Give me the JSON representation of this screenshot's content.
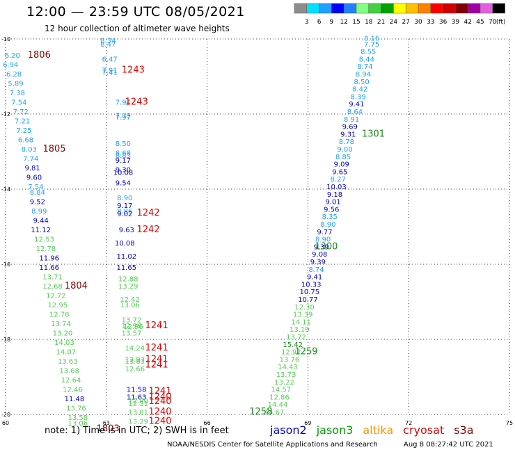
{
  "header": {
    "title": "12:00 — 23:59 UTC 08/05/2021",
    "subtitle": "12 hour collection of altimeter wave heights"
  },
  "color_scale": {
    "colors": [
      "#8c8c8c",
      "#00e1ff",
      "#1ea0ff",
      "#0000ff",
      "#2080ff",
      "#80ff80",
      "#40d040",
      "#00a000",
      "#ffff00",
      "#ffc000",
      "#ff8000",
      "#ff0000",
      "#d00000",
      "#800000",
      "#a000a0",
      "#e060e0",
      "#000000"
    ],
    "labels": [
      "3",
      "6",
      "9",
      "12",
      "15",
      "18",
      "21",
      "24",
      "27",
      "30",
      "33",
      "36",
      "39",
      "42",
      "45",
      "70",
      "(ft)"
    ]
  },
  "footer": {
    "note": "note:  1) Time is in UTC;  2) SWH is in feet",
    "credit": "NOAA/NESDIS Center for Satellite Applications and Research",
    "timestamp": "Aug  8 08:27:42 UTC 2021"
  },
  "satellites": [
    {
      "name": "jason2",
      "color": "#0000d0"
    },
    {
      "name": "jason3",
      "color": "#00a000"
    },
    {
      "name": "altika",
      "color": "#ff9000"
    },
    {
      "name": "cryosat",
      "color": "#e00000"
    },
    {
      "name": "s3a",
      "color": "#800000"
    }
  ],
  "chart_data": {
    "type": "scatter",
    "title": "12:00 — 23:59 UTC 08/05/2021",
    "xlim": [
      60,
      75
    ],
    "ylim": [
      -20,
      -10
    ],
    "xticks": [
      "60",
      "63",
      "66",
      "69",
      "72",
      "75"
    ],
    "yticks": [
      "-10",
      "-12",
      "-14",
      "-16",
      "-18",
      "-20"
    ],
    "grid": true,
    "palette": {
      "cyan": "#1ea0ff",
      "blue": "#0000c8",
      "lgreen": "#50d050",
      "dgreen": "#1a8a1a",
      "red": "#e00000",
      "maroon": "#800000"
    },
    "points": [
      {
        "x": 60.2,
        "y": -10.5,
        "v": "6.20",
        "c": "cyan"
      },
      {
        "x": 60.15,
        "y": -10.75,
        "v": "6.94",
        "c": "cyan"
      },
      {
        "x": 60.25,
        "y": -11.0,
        "v": "6.28",
        "c": "cyan"
      },
      {
        "x": 60.3,
        "y": -11.25,
        "v": "5.89",
        "c": "cyan"
      },
      {
        "x": 60.35,
        "y": -11.5,
        "v": "7.38",
        "c": "cyan"
      },
      {
        "x": 60.4,
        "y": -11.75,
        "v": "7.54",
        "c": "cyan"
      },
      {
        "x": 60.45,
        "y": -12.0,
        "v": "7.72",
        "c": "cyan"
      },
      {
        "x": 60.5,
        "y": -12.25,
        "v": "7.21",
        "c": "cyan"
      },
      {
        "x": 60.55,
        "y": -12.5,
        "v": "7.25",
        "c": "cyan"
      },
      {
        "x": 60.6,
        "y": -12.75,
        "v": "6.68",
        "c": "cyan"
      },
      {
        "x": 60.7,
        "y": -13.0,
        "v": "8.03",
        "c": "cyan"
      },
      {
        "x": 60.75,
        "y": -13.25,
        "v": "7.74",
        "c": "cyan"
      },
      {
        "x": 60.8,
        "y": -13.5,
        "v": "9.81",
        "c": "blue"
      },
      {
        "x": 60.85,
        "y": -13.75,
        "v": "9.60",
        "c": "blue"
      },
      {
        "x": 60.9,
        "y": -14.0,
        "v": "7.54",
        "c": "cyan"
      },
      {
        "x": 60.95,
        "y": -14.15,
        "v": "8.84",
        "c": "cyan"
      },
      {
        "x": 60.95,
        "y": -14.4,
        "v": "9.52",
        "c": "blue"
      },
      {
        "x": 61.0,
        "y": -14.65,
        "v": "8.99",
        "c": "cyan"
      },
      {
        "x": 61.05,
        "y": -14.9,
        "v": "9.44",
        "c": "blue"
      },
      {
        "x": 61.05,
        "y": -15.15,
        "v": "11.12",
        "c": "blue"
      },
      {
        "x": 61.15,
        "y": -15.4,
        "v": "12.53",
        "c": "lgreen"
      },
      {
        "x": 61.2,
        "y": -15.65,
        "v": "12.78",
        "c": "lgreen"
      },
      {
        "x": 61.3,
        "y": -15.9,
        "v": "11.96",
        "c": "blue"
      },
      {
        "x": 61.3,
        "y": -16.15,
        "v": "11.66",
        "c": "blue"
      },
      {
        "x": 61.4,
        "y": -16.4,
        "v": "13.71",
        "c": "lgreen"
      },
      {
        "x": 61.4,
        "y": -16.65,
        "v": "12.68",
        "c": "lgreen"
      },
      {
        "x": 61.5,
        "y": -16.9,
        "v": "12.72",
        "c": "lgreen"
      },
      {
        "x": 61.55,
        "y": -17.15,
        "v": "12.95",
        "c": "lgreen"
      },
      {
        "x": 61.6,
        "y": -17.4,
        "v": "12.78",
        "c": "lgreen"
      },
      {
        "x": 61.65,
        "y": -17.65,
        "v": "13.74",
        "c": "lgreen"
      },
      {
        "x": 61.7,
        "y": -17.9,
        "v": "13.20",
        "c": "lgreen"
      },
      {
        "x": 61.75,
        "y": -18.15,
        "v": "14.03",
        "c": "lgreen"
      },
      {
        "x": 61.8,
        "y": -18.4,
        "v": "14.07",
        "c": "lgreen"
      },
      {
        "x": 61.85,
        "y": -18.65,
        "v": "13.63",
        "c": "lgreen"
      },
      {
        "x": 61.9,
        "y": -18.9,
        "v": "13.68",
        "c": "lgreen"
      },
      {
        "x": 61.95,
        "y": -19.15,
        "v": "12.64",
        "c": "lgreen"
      },
      {
        "x": 62.0,
        "y": -19.4,
        "v": "12.46",
        "c": "lgreen"
      },
      {
        "x": 62.05,
        "y": -19.65,
        "v": "11.48",
        "c": "blue"
      },
      {
        "x": 62.1,
        "y": -19.9,
        "v": "13.76",
        "c": "lgreen"
      },
      {
        "x": 62.15,
        "y": -20.15,
        "v": "13.58",
        "c": "lgreen"
      },
      {
        "x": 62.15,
        "y": -20.3,
        "v": "13.06",
        "c": "lgreen"
      },
      {
        "x": 63.05,
        "y": -10.1,
        "v": "8.34",
        "c": "cyan"
      },
      {
        "x": 63.05,
        "y": -10.2,
        "v": "8.47",
        "c": "cyan"
      },
      {
        "x": 63.1,
        "y": -10.6,
        "v": "6.47",
        "c": "cyan"
      },
      {
        "x": 63.1,
        "y": -10.9,
        "v": "7.91",
        "c": "cyan"
      },
      {
        "x": 63.1,
        "y": -10.95,
        "v": "7.41",
        "c": "cyan"
      },
      {
        "x": 63.5,
        "y": -11.75,
        "v": "7.94",
        "c": "cyan"
      },
      {
        "x": 63.5,
        "y": -12.1,
        "v": "7.19",
        "c": "cyan"
      },
      {
        "x": 63.5,
        "y": -12.15,
        "v": "7.97",
        "c": "cyan"
      },
      {
        "x": 63.5,
        "y": -12.85,
        "v": "8.50",
        "c": "cyan"
      },
      {
        "x": 63.5,
        "y": -13.1,
        "v": "8.68",
        "c": "cyan"
      },
      {
        "x": 63.5,
        "y": -13.17,
        "v": "8.83",
        "c": "cyan"
      },
      {
        "x": 63.5,
        "y": -13.3,
        "v": "9.17",
        "c": "blue"
      },
      {
        "x": 63.5,
        "y": -13.55,
        "v": "9.30",
        "c": "blue"
      },
      {
        "x": 63.5,
        "y": -13.62,
        "v": "10.08",
        "c": "blue"
      },
      {
        "x": 63.5,
        "y": -13.9,
        "v": "9.54",
        "c": "blue"
      },
      {
        "x": 63.55,
        "y": -14.3,
        "v": "8.90",
        "c": "cyan"
      },
      {
        "x": 63.55,
        "y": -14.5,
        "v": "9.17",
        "c": "blue"
      },
      {
        "x": 63.55,
        "y": -14.65,
        "v": "8.86",
        "c": "cyan"
      },
      {
        "x": 63.55,
        "y": -14.72,
        "v": "9.02",
        "c": "blue"
      },
      {
        "x": 63.6,
        "y": -15.15,
        "v": "9.63",
        "c": "blue"
      },
      {
        "x": 63.55,
        "y": -15.5,
        "v": "10.08",
        "c": "blue"
      },
      {
        "x": 63.6,
        "y": -15.85,
        "v": "11.02",
        "c": "blue"
      },
      {
        "x": 63.6,
        "y": -16.15,
        "v": "11.65",
        "c": "blue"
      },
      {
        "x": 63.65,
        "y": -16.45,
        "v": "12.88",
        "c": "lgreen"
      },
      {
        "x": 63.65,
        "y": -16.65,
        "v": "13.29",
        "c": "lgreen"
      },
      {
        "x": 63.7,
        "y": -17.0,
        "v": "12.42",
        "c": "lgreen"
      },
      {
        "x": 63.7,
        "y": -17.15,
        "v": "13.06",
        "c": "lgreen"
      },
      {
        "x": 63.75,
        "y": -17.55,
        "v": "13.72",
        "c": "lgreen"
      },
      {
        "x": 63.75,
        "y": -17.7,
        "v": "12.98",
        "c": "lgreen"
      },
      {
        "x": 63.8,
        "y": -17.72,
        "v": "12.96",
        "c": "lgreen"
      },
      {
        "x": 63.75,
        "y": -17.9,
        "v": "13.57",
        "c": "lgreen"
      },
      {
        "x": 63.85,
        "y": -18.3,
        "v": "14.24",
        "c": "lgreen"
      },
      {
        "x": 63.85,
        "y": -18.6,
        "v": "12.97",
        "c": "lgreen"
      },
      {
        "x": 63.85,
        "y": -18.65,
        "v": "13.63",
        "c": "lgreen"
      },
      {
        "x": 63.85,
        "y": -18.85,
        "v": "12.66",
        "c": "lgreen"
      },
      {
        "x": 63.9,
        "y": -19.4,
        "v": "11.58",
        "c": "blue"
      },
      {
        "x": 63.9,
        "y": -19.6,
        "v": "11.63",
        "c": "blue"
      },
      {
        "x": 63.95,
        "y": -19.7,
        "v": "12.80",
        "c": "lgreen"
      },
      {
        "x": 63.95,
        "y": -19.78,
        "v": "12.51",
        "c": "lgreen"
      },
      {
        "x": 63.95,
        "y": -20.0,
        "v": "13.81",
        "c": "lgreen"
      },
      {
        "x": 63.95,
        "y": -20.25,
        "v": "13.29",
        "c": "lgreen"
      },
      {
        "x": 70.9,
        "y": -10.05,
        "v": "8.16",
        "c": "cyan"
      },
      {
        "x": 70.9,
        "y": -10.2,
        "v": "7.75",
        "c": "cyan"
      },
      {
        "x": 70.8,
        "y": -10.4,
        "v": "8.55",
        "c": "cyan"
      },
      {
        "x": 70.75,
        "y": -10.6,
        "v": "8.44",
        "c": "cyan"
      },
      {
        "x": 70.7,
        "y": -10.8,
        "v": "8.74",
        "c": "cyan"
      },
      {
        "x": 70.65,
        "y": -11.0,
        "v": "8.94",
        "c": "cyan"
      },
      {
        "x": 70.6,
        "y": -11.2,
        "v": "8.50",
        "c": "cyan"
      },
      {
        "x": 70.55,
        "y": -11.4,
        "v": "8.42",
        "c": "cyan"
      },
      {
        "x": 70.5,
        "y": -11.6,
        "v": "8.39",
        "c": "cyan"
      },
      {
        "x": 70.45,
        "y": -11.8,
        "v": "9.41",
        "c": "blue"
      },
      {
        "x": 70.4,
        "y": -12.0,
        "v": "8.64",
        "c": "cyan"
      },
      {
        "x": 70.3,
        "y": -12.2,
        "v": "8.91",
        "c": "cyan"
      },
      {
        "x": 70.25,
        "y": -12.4,
        "v": "9.69",
        "c": "blue"
      },
      {
        "x": 70.2,
        "y": -12.6,
        "v": "9.31",
        "c": "blue"
      },
      {
        "x": 70.15,
        "y": -12.8,
        "v": "8.78",
        "c": "cyan"
      },
      {
        "x": 70.1,
        "y": -13.0,
        "v": "9.00",
        "c": "cyan"
      },
      {
        "x": 70.05,
        "y": -13.2,
        "v": "8.85",
        "c": "cyan"
      },
      {
        "x": 70.0,
        "y": -13.4,
        "v": "9.09",
        "c": "blue"
      },
      {
        "x": 69.95,
        "y": -13.6,
        "v": "9.65",
        "c": "blue"
      },
      {
        "x": 69.9,
        "y": -13.8,
        "v": "8.27",
        "c": "cyan"
      },
      {
        "x": 69.85,
        "y": -14.0,
        "v": "10.03",
        "c": "blue"
      },
      {
        "x": 69.8,
        "y": -14.2,
        "v": "9.18",
        "c": "blue"
      },
      {
        "x": 69.75,
        "y": -14.4,
        "v": "9.01",
        "c": "blue"
      },
      {
        "x": 69.7,
        "y": -14.6,
        "v": "9.56",
        "c": "blue"
      },
      {
        "x": 69.65,
        "y": -14.8,
        "v": "8.35",
        "c": "cyan"
      },
      {
        "x": 69.6,
        "y": -15.0,
        "v": "8.90",
        "c": "cyan"
      },
      {
        "x": 69.5,
        "y": -15.2,
        "v": "9.77",
        "c": "blue"
      },
      {
        "x": 69.45,
        "y": -15.4,
        "v": "8.90",
        "c": "cyan"
      },
      {
        "x": 69.4,
        "y": -15.6,
        "v": "9.39",
        "c": "blue"
      },
      {
        "x": 69.35,
        "y": -15.8,
        "v": "9.08",
        "c": "blue"
      },
      {
        "x": 69.3,
        "y": -16.0,
        "v": "9.39",
        "c": "blue"
      },
      {
        "x": 69.25,
        "y": -16.2,
        "v": "8.74",
        "c": "cyan"
      },
      {
        "x": 69.2,
        "y": -16.4,
        "v": "9.41",
        "c": "blue"
      },
      {
        "x": 69.1,
        "y": -16.6,
        "v": "10.33",
        "c": "blue"
      },
      {
        "x": 69.05,
        "y": -16.8,
        "v": "10.75",
        "c": "blue"
      },
      {
        "x": 69.0,
        "y": -17.0,
        "v": "10.77",
        "c": "blue"
      },
      {
        "x": 68.9,
        "y": -17.2,
        "v": "12.30",
        "c": "lgreen"
      },
      {
        "x": 68.85,
        "y": -17.4,
        "v": "13.39",
        "c": "lgreen"
      },
      {
        "x": 68.8,
        "y": -17.6,
        "v": "14.11",
        "c": "lgreen"
      },
      {
        "x": 68.75,
        "y": -17.8,
        "v": "13.19",
        "c": "lgreen"
      },
      {
        "x": 68.65,
        "y": -18.0,
        "v": "13.72",
        "c": "lgreen"
      },
      {
        "x": 68.55,
        "y": -18.2,
        "v": "15.42",
        "c": "dgreen"
      },
      {
        "x": 68.5,
        "y": -18.4,
        "v": "12.92",
        "c": "lgreen"
      },
      {
        "x": 68.45,
        "y": -18.6,
        "v": "13.76",
        "c": "lgreen"
      },
      {
        "x": 68.4,
        "y": -18.8,
        "v": "14.43",
        "c": "lgreen"
      },
      {
        "x": 68.35,
        "y": -19.0,
        "v": "13.73",
        "c": "lgreen"
      },
      {
        "x": 68.3,
        "y": -19.2,
        "v": "13.22",
        "c": "lgreen"
      },
      {
        "x": 68.2,
        "y": -19.4,
        "v": "14.57",
        "c": "lgreen"
      },
      {
        "x": 68.15,
        "y": -19.6,
        "v": "12.86",
        "c": "lgreen"
      },
      {
        "x": 68.1,
        "y": -19.8,
        "v": "14.44",
        "c": "lgreen"
      },
      {
        "x": 68.0,
        "y": -20.0,
        "v": "14.67",
        "c": "lgreen"
      }
    ],
    "time_labels": [
      {
        "x": 61.0,
        "y": -10.5,
        "t": "1806",
        "c": "maroon"
      },
      {
        "x": 63.8,
        "y": -10.9,
        "t": "1243",
        "c": "red"
      },
      {
        "x": 63.9,
        "y": -11.75,
        "t": "1243",
        "c": "red"
      },
      {
        "x": 61.45,
        "y": -13.0,
        "t": "1805",
        "c": "maroon"
      },
      {
        "x": 64.25,
        "y": -14.7,
        "t": "1242",
        "c": "red"
      },
      {
        "x": 64.25,
        "y": -15.15,
        "t": "1242",
        "c": "red"
      },
      {
        "x": 62.1,
        "y": -16.65,
        "t": "1804",
        "c": "maroon"
      },
      {
        "x": 64.5,
        "y": -17.7,
        "t": "1241",
        "c": "red"
      },
      {
        "x": 64.5,
        "y": -18.3,
        "t": "1241",
        "c": "red"
      },
      {
        "x": 64.5,
        "y": -18.6,
        "t": "1241",
        "c": "red"
      },
      {
        "x": 64.5,
        "y": -18.75,
        "t": "1241",
        "c": "red"
      },
      {
        "x": 64.6,
        "y": -19.45,
        "t": "1241",
        "c": "red"
      },
      {
        "x": 64.6,
        "y": -19.6,
        "t": "1240",
        "c": "red"
      },
      {
        "x": 64.6,
        "y": -19.72,
        "t": "1240",
        "c": "red"
      },
      {
        "x": 64.6,
        "y": -20.0,
        "t": "1240",
        "c": "red"
      },
      {
        "x": 64.6,
        "y": -20.25,
        "t": "1240",
        "c": "red"
      },
      {
        "x": 63.05,
        "y": -20.45,
        "t": "1803",
        "c": "maroon"
      },
      {
        "x": 70.95,
        "y": -12.6,
        "t": "1301",
        "c": "dgreen"
      },
      {
        "x": 69.55,
        "y": -15.6,
        "t": "1300",
        "c": "dgreen"
      },
      {
        "x": 68.95,
        "y": -18.4,
        "t": "1259",
        "c": "dgreen"
      },
      {
        "x": 67.6,
        "y": -20.0,
        "t": "1258",
        "c": "dgreen"
      }
    ]
  }
}
